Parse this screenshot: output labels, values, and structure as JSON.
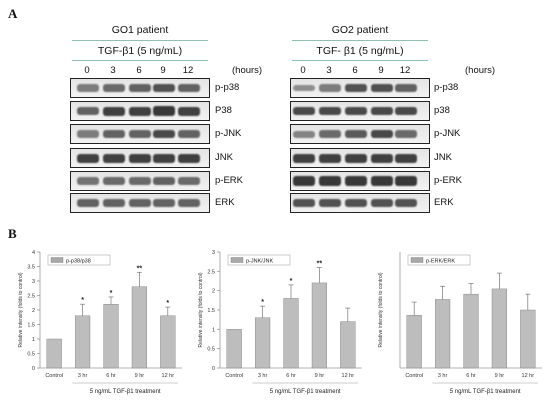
{
  "panel_a": {
    "letter": "A",
    "hours_unit": "(hours)",
    "hours": [
      "0",
      "3",
      "6",
      "9",
      "12"
    ],
    "blots": [
      {
        "patient": "GO1 patient",
        "treatment": "TGF-β1 (5 ng/mL)",
        "rows": [
          {
            "label": "p-p38",
            "levels": [
              0.45,
              0.55,
              0.6,
              0.7,
              0.6
            ]
          },
          {
            "label": "P38",
            "levels": [
              0.6,
              0.8,
              0.8,
              0.85,
              0.8
            ]
          },
          {
            "label": "p-JNK",
            "levels": [
              0.45,
              0.6,
              0.6,
              0.75,
              0.6
            ]
          },
          {
            "label": "JNK",
            "levels": [
              0.8,
              0.8,
              0.8,
              0.8,
              0.8
            ]
          },
          {
            "label": "p-ERK",
            "levels": [
              0.5,
              0.55,
              0.55,
              0.6,
              0.55
            ]
          },
          {
            "label": "ERK",
            "levels": [
              0.6,
              0.6,
              0.6,
              0.6,
              0.6
            ]
          }
        ]
      },
      {
        "patient": "GO2 patient",
        "treatment": "TGF- β1 (5 ng/mL)",
        "rows": [
          {
            "label": "p-p38",
            "levels": [
              0.35,
              0.45,
              0.7,
              0.7,
              0.6
            ]
          },
          {
            "label": "p38",
            "levels": [
              0.75,
              0.75,
              0.75,
              0.75,
              0.75
            ]
          },
          {
            "label": "p-JNK",
            "levels": [
              0.4,
              0.55,
              0.65,
              0.75,
              0.55
            ]
          },
          {
            "label": "JNK",
            "levels": [
              0.8,
              0.8,
              0.8,
              0.8,
              0.8
            ]
          },
          {
            "label": "p-ERK",
            "levels": [
              0.85,
              0.85,
              0.85,
              0.85,
              0.85
            ]
          },
          {
            "label": "ERK",
            "levels": [
              0.7,
              0.7,
              0.7,
              0.7,
              0.7
            ]
          }
        ]
      }
    ]
  },
  "panel_b": {
    "letter": "B",
    "colors": {
      "bar": "#bdbdbd",
      "bar_edge": "#7a7a7a",
      "axis": "#9a9a9a",
      "legend_swatch": "#a8a8a8"
    }
  },
  "chart_data": [
    {
      "type": "bar",
      "legend": "p-p38/p38",
      "ylabel": "Relative intensity (folds to control)",
      "xlabel": "5 ng/mL TGF-β1 treatment",
      "categories": [
        "Control",
        "3 hr",
        "6 hr",
        "9 hr",
        "12 hr"
      ],
      "values": [
        1.0,
        1.8,
        2.2,
        2.8,
        1.8
      ],
      "errors": [
        0,
        0.4,
        0.25,
        0.5,
        0.3
      ],
      "significance": [
        "",
        "*",
        "*",
        "**",
        "*"
      ],
      "ylim": [
        0,
        4
      ],
      "yticks": [
        "0",
        "0.5",
        "1",
        "1.5",
        "2",
        "2.5",
        "3",
        "3.5",
        "4"
      ],
      "ytick_values": [
        0,
        0.5,
        1,
        1.5,
        2,
        2.5,
        3,
        3.5,
        4
      ],
      "grid": false
    },
    {
      "type": "bar",
      "legend": "p-JNK/JNK",
      "ylabel": "Relative intensity (folds to control)",
      "xlabel": "5 ng/mL TGF-β1 treatment",
      "categories": [
        "Control",
        "3 hr",
        "6 hr",
        "9 hr",
        "12 hr"
      ],
      "values": [
        1.0,
        1.3,
        1.8,
        2.2,
        1.2
      ],
      "errors": [
        0,
        0.3,
        0.35,
        0.4,
        0.35
      ],
      "significance": [
        "",
        "*",
        "*",
        "**",
        ""
      ],
      "ylim": [
        0,
        3
      ],
      "yticks": [
        "0",
        "0.5",
        "1",
        "1.5",
        "2",
        "2.5",
        "3"
      ],
      "ytick_values": [
        0,
        0.5,
        1,
        1.5,
        2,
        2.5,
        3
      ],
      "grid": false
    },
    {
      "type": "bar",
      "legend": "p-ERK/ERK",
      "ylabel": "Relative intensity (folds to control)",
      "xlabel": "5 ng/mL TGF-β1 treatment",
      "categories": [
        "Control",
        "3 hr",
        "6 hr",
        "9 hr",
        "12 hr"
      ],
      "values": [
        1.0,
        1.3,
        1.4,
        1.5,
        1.1
      ],
      "errors": [
        0.25,
        0.25,
        0.2,
        0.3,
        0.3
      ],
      "significance": [
        "",
        "",
        "",
        "",
        ""
      ],
      "ylim": [
        0,
        2.2
      ],
      "yticks": [],
      "ytick_values": [],
      "grid": false
    }
  ]
}
